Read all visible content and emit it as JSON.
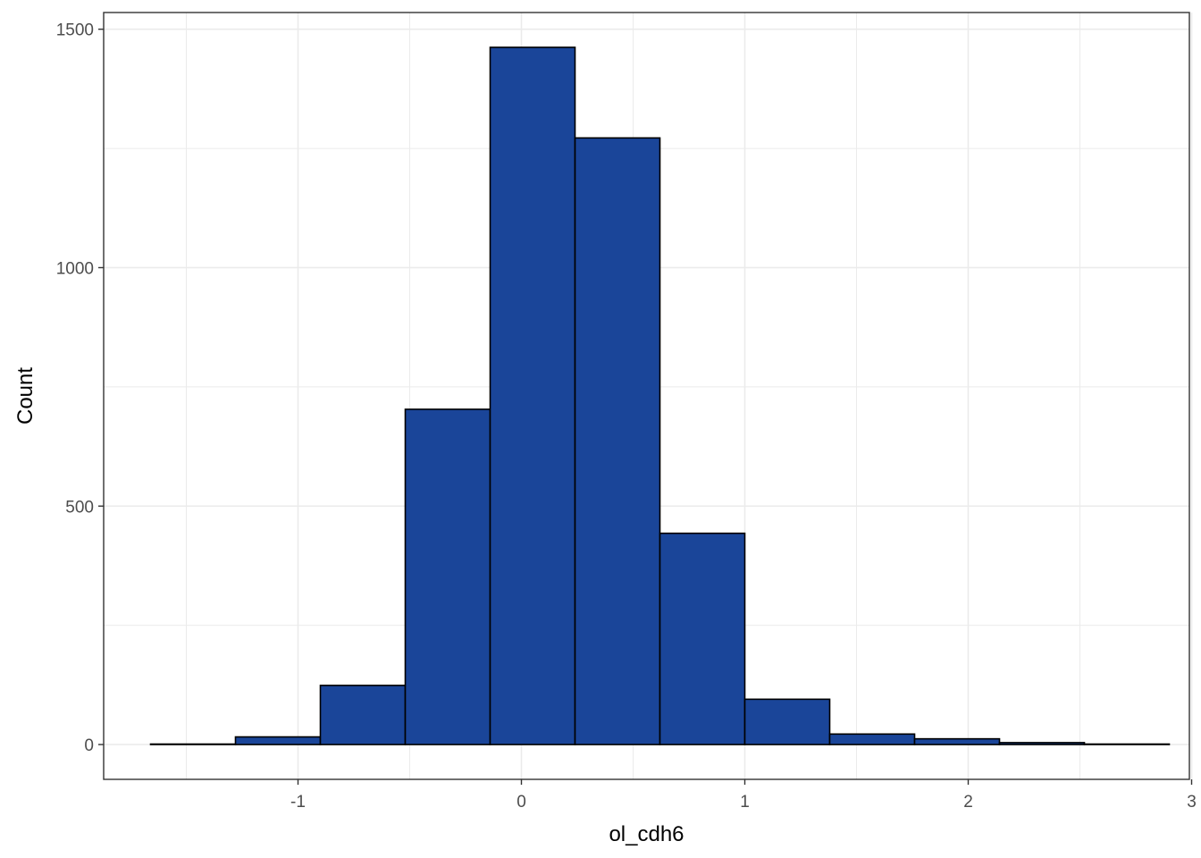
{
  "chart_data": {
    "type": "bar",
    "subtype": "histogram",
    "xlabel": "ol_cdh6",
    "ylabel": "Count",
    "xlim": [
      -1.87,
      2.99
    ],
    "ylim": [
      -73,
      1535
    ],
    "xticks": [
      -1,
      0,
      1,
      2,
      3
    ],
    "yticks": [
      0,
      500,
      1000,
      1500
    ],
    "xtick_labels": [
      "-1",
      "0",
      "1",
      "2",
      "3"
    ],
    "ytick_labels": [
      "0",
      "500",
      "1000",
      "1500"
    ],
    "bin_edges": [
      -1.66,
      -1.28,
      -0.9,
      -0.52,
      -0.14,
      0.24,
      0.62,
      1.0,
      1.38,
      1.76,
      2.14,
      2.52,
      2.9
    ],
    "values": [
      1,
      16,
      124,
      703,
      1462,
      1272,
      443,
      95,
      22,
      12,
      4,
      1
    ],
    "grid": true,
    "legend": "none",
    "colors": {
      "fill": "#1a4599",
      "outline": "#000000",
      "grid": "#ebebeb",
      "panel_border": "#333333"
    }
  }
}
